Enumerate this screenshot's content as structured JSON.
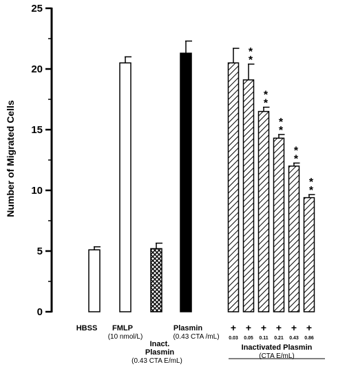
{
  "chart_data": {
    "type": "bar",
    "ylabel": "Number of Migrated Cells",
    "ylim": [
      0,
      25
    ],
    "yticks": [
      "0",
      "5",
      "10",
      "15",
      "20",
      "25"
    ],
    "grid": false,
    "legend": "none",
    "bars": [
      {
        "category": "HBSS",
        "sublabel": "",
        "value": 5.1,
        "error": 0.25,
        "style": "open"
      },
      {
        "category": "FMLP",
        "sublabel": "(10 nmol/L)",
        "value": 20.5,
        "error": 0.5,
        "style": "open"
      },
      {
        "category": "Inact. Plasmin",
        "sublabel": "(0.43 CTA E/mL)",
        "value": 5.2,
        "error": 0.45,
        "style": "crosshatch"
      },
      {
        "category": "Plasmin",
        "sublabel": "(0.43 CTA /mL)",
        "value": 21.3,
        "error": 1.0,
        "style": "solid"
      },
      {
        "category": "+",
        "sublabel": "0.03",
        "value": 20.5,
        "error": 1.2,
        "style": "hatched",
        "significance": ""
      },
      {
        "category": "+",
        "sublabel": "0.05",
        "value": 19.1,
        "error": 1.3,
        "style": "hatched",
        "significance": "**"
      },
      {
        "category": "+",
        "sublabel": "0.11",
        "value": 16.5,
        "error": 0.35,
        "style": "hatched",
        "significance": "**"
      },
      {
        "category": "+",
        "sublabel": "0.21",
        "value": 14.3,
        "error": 0.3,
        "style": "hatched",
        "significance": "**"
      },
      {
        "category": "+",
        "sublabel": "0.43",
        "value": 12.0,
        "error": 0.25,
        "style": "hatched",
        "significance": "**"
      },
      {
        "category": "+",
        "sublabel": "0.86",
        "value": 9.4,
        "error": 0.25,
        "style": "hatched",
        "significance": ""
      }
    ],
    "group_label": "Inactivated Plasmin",
    "group_sublabel": "(CTA E/mL)",
    "colors": {
      "stroke": "#000000",
      "fill_open": "#ffffff",
      "fill_solid": "#000000"
    }
  }
}
